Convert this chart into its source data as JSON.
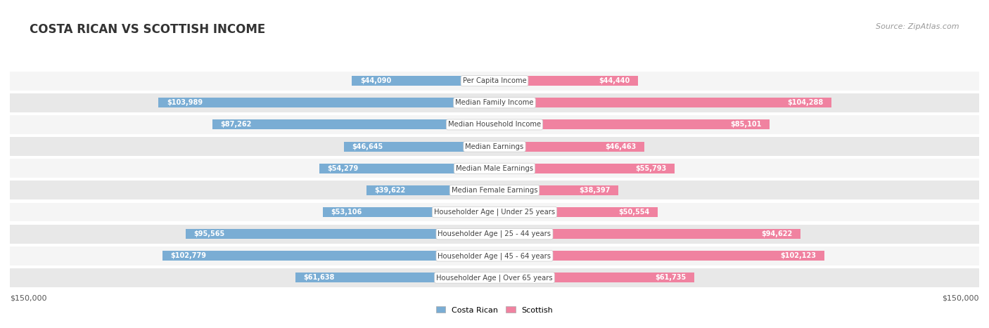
{
  "title": "COSTA RICAN VS SCOTTISH INCOME",
  "source": "Source: ZipAtlas.com",
  "categories": [
    "Per Capita Income",
    "Median Family Income",
    "Median Household Income",
    "Median Earnings",
    "Median Male Earnings",
    "Median Female Earnings",
    "Householder Age | Under 25 years",
    "Householder Age | 25 - 44 years",
    "Householder Age | 45 - 64 years",
    "Householder Age | Over 65 years"
  ],
  "costa_rican": [
    44090,
    103989,
    87262,
    46645,
    54279,
    39622,
    53106,
    95565,
    102779,
    61638
  ],
  "scottish": [
    44440,
    104288,
    85101,
    46463,
    55793,
    38397,
    50554,
    94622,
    102123,
    61735
  ],
  "max_val": 150000,
  "blue_color": "#7aadd4",
  "pink_color": "#f082a0",
  "bg_row_light": "#f5f5f5",
  "bg_row_dark": "#e8e8e8",
  "title_color": "#333333",
  "source_color": "#999999"
}
